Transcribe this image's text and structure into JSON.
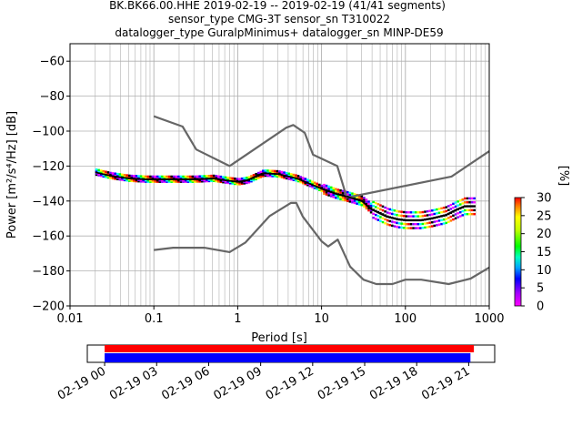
{
  "title_lines": [
    "BK.BK66.00.HHE   2019-02-19 -- 2019-02-19  (41/41 segments)",
    "sensor_type CMG-3T sensor_sn T310022",
    "datalogger_type GuralpMinimus+ datalogger_sn MINP-DE59"
  ],
  "colors": {
    "noise_model": "#666666",
    "mode_line": "#000000",
    "coverage_top": "#ff0000",
    "coverage_bottom": "#0000ff",
    "grid": "#b0b0b0"
  },
  "chart_data": [
    {
      "type": "psd_histogram",
      "xlabel": "Period [s]",
      "ylabel": "Power [m²/s⁴/Hz] [dB]",
      "xscale": "log",
      "xlim": [
        0.01,
        1000
      ],
      "ylim": [
        -200,
        -50
      ],
      "x_ticks": [
        0.01,
        0.1,
        1,
        10,
        100,
        1000
      ],
      "x_tick_labels": [
        "0.01",
        "0.1",
        "1",
        "10",
        "100",
        "1000"
      ],
      "y_ticks": [
        -200,
        -180,
        -160,
        -140,
        -120,
        -100,
        -80,
        -60
      ],
      "y_tick_labels": [
        "−200",
        "−180",
        "−160",
        "−140",
        "−120",
        "−100",
        "−80",
        "−60"
      ],
      "grid": true,
      "series": [
        {
          "kind": "noise_model_high",
          "points": [
            [
              0.1,
              -91.5
            ],
            [
              0.22,
              -97.4
            ],
            [
              0.32,
              -110.5
            ],
            [
              0.8,
              -120
            ],
            [
              3.8,
              -98
            ],
            [
              4.6,
              -96.5
            ],
            [
              6.3,
              -101
            ],
            [
              7.9,
              -113.5
            ],
            [
              15.4,
              -120
            ],
            [
              20,
              -138
            ],
            [
              354.8,
              -126
            ],
            [
              1000,
              -111.5
            ]
          ]
        },
        {
          "kind": "noise_model_low",
          "points": [
            [
              0.1,
              -168
            ],
            [
              0.17,
              -166.7
            ],
            [
              0.4,
              -166.7
            ],
            [
              0.8,
              -169.2
            ],
            [
              1.24,
              -163.7
            ],
            [
              2.4,
              -148.6
            ],
            [
              4.3,
              -141.1
            ],
            [
              5,
              -141.1
            ],
            [
              6,
              -149
            ],
            [
              10,
              -163
            ],
            [
              12,
              -166
            ],
            [
              15.6,
              -162.1
            ],
            [
              21.9,
              -177.5
            ],
            [
              31.6,
              -185
            ],
            [
              45,
              -187.5
            ],
            [
              70,
              -187.5
            ],
            [
              100,
              -185
            ],
            [
              154.5,
              -185
            ],
            [
              328.5,
              -187.5
            ],
            [
              600,
              -184.4
            ],
            [
              1000,
              -178
            ]
          ]
        },
        {
          "kind": "mode_curve",
          "points": [
            [
              0.02,
              -123.5
            ],
            [
              0.03,
              -125.5
            ],
            [
              0.05,
              -127
            ],
            [
              0.08,
              -127.5
            ],
            [
              0.15,
              -127.5
            ],
            [
              0.3,
              -127.5
            ],
            [
              0.5,
              -127
            ],
            [
              0.7,
              -128
            ],
            [
              1,
              -129
            ],
            [
              1.3,
              -128
            ],
            [
              2,
              -124
            ],
            [
              3,
              -124.5
            ],
            [
              5,
              -127
            ],
            [
              8,
              -131
            ],
            [
              10,
              -133
            ],
            [
              15,
              -136
            ],
            [
              20,
              -137.5
            ],
            [
              30,
              -140
            ],
            [
              40,
              -145
            ],
            [
              60,
              -149
            ],
            [
              80,
              -150.5
            ],
            [
              100,
              -151
            ],
            [
              150,
              -151
            ],
            [
              200,
              -150
            ],
            [
              300,
              -148
            ],
            [
              400,
              -145
            ],
            [
              500,
              -143
            ],
            [
              650,
              -143
            ]
          ]
        }
      ],
      "colorbar": {
        "label": "[%]",
        "min": 0,
        "max": 30,
        "ticks": [
          0,
          5,
          10,
          15,
          20,
          25,
          30
        ],
        "tick_labels": [
          "0",
          "5",
          "10",
          "15",
          "20",
          "25",
          "30"
        ]
      }
    },
    {
      "type": "data_coverage",
      "x_tick_labels": [
        "02-19 00",
        "02-19 03",
        "02-19 06",
        "02-19 09",
        "02-19 12",
        "02-19 15",
        "02-19 18",
        "02-19 21"
      ],
      "xlim_hours": [
        -1,
        22.5
      ],
      "bars": [
        {
          "row": "top",
          "start_hour": 0,
          "end_hour": 21.3
        },
        {
          "row": "bottom",
          "start_hour": 0,
          "end_hour": 21.1
        }
      ]
    }
  ]
}
